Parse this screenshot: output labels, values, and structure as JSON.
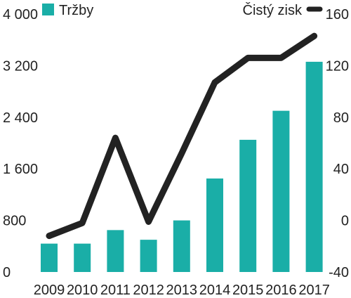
{
  "chart_data": {
    "type": "bar+line",
    "categories": [
      "2009",
      "2010",
      "2011",
      "2012",
      "2013",
      "2014",
      "2015",
      "2016",
      "2017"
    ],
    "series": [
      {
        "name": "Tržby",
        "kind": "bar",
        "axis": "left",
        "color": "#1aaea7",
        "values": [
          440,
          440,
          650,
          500,
          800,
          1450,
          2050,
          2500,
          3260
        ]
      },
      {
        "name": "Čistý zisk",
        "kind": "line",
        "axis": "right",
        "color": "#222222",
        "values": [
          -12,
          -2,
          64,
          -1,
          52,
          107,
          126,
          126,
          143
        ]
      }
    ],
    "left_axis": {
      "ylim": [
        0,
        4000
      ],
      "ticks": [
        "0",
        "800",
        "1 600",
        "2 400",
        "3 200",
        "4 000"
      ],
      "tick_values": [
        0,
        800,
        1600,
        2400,
        3200,
        4000
      ]
    },
    "right_axis": {
      "ylim": [
        -40,
        160
      ],
      "ticks": [
        "-40",
        "0",
        "40",
        "80",
        "120",
        "160"
      ],
      "tick_values": [
        -40,
        0,
        40,
        80,
        120,
        160
      ]
    },
    "grid": false,
    "legend_placement": "top"
  },
  "legend": {
    "bar_label": "Tržby",
    "line_label": "Čistý zisk"
  }
}
